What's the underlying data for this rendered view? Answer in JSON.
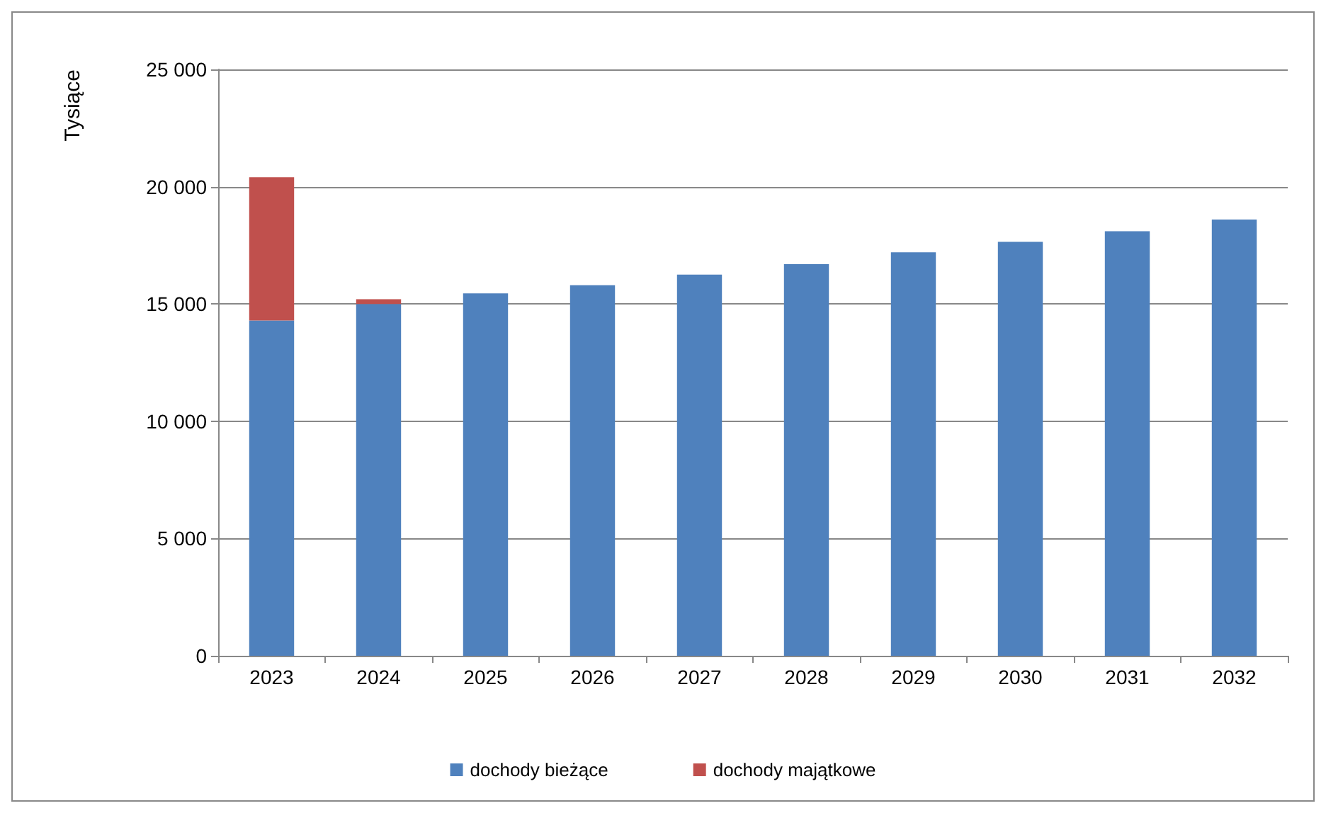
{
  "chart_data": {
    "type": "bar",
    "ylabel": "Tysiące",
    "categories": [
      "2023",
      "2024",
      "2025",
      "2026",
      "2027",
      "2028",
      "2029",
      "2030",
      "2031",
      "2032"
    ],
    "stacked": true,
    "series": [
      {
        "name": "dochody bieżące",
        "color": "#4f81bd",
        "values": [
          14300,
          15000,
          15450,
          15800,
          16250,
          16700,
          17200,
          17650,
          18100,
          18600
        ]
      },
      {
        "name": "dochody majątkowe",
        "color": "#c0504d",
        "values": [
          6100,
          200,
          null,
          null,
          null,
          null,
          null,
          null,
          null,
          null
        ]
      }
    ],
    "ylim": [
      0,
      25000
    ],
    "yticks": [
      {
        "value": 0,
        "label": "0"
      },
      {
        "value": 5000,
        "label": "5 000"
      },
      {
        "value": 10000,
        "label": "10 000"
      },
      {
        "value": 15000,
        "label": "15 000"
      },
      {
        "value": 20000,
        "label": "20 000"
      },
      {
        "value": 25000,
        "label": "25 000"
      }
    ],
    "grid": "y",
    "legend": "bottom"
  }
}
